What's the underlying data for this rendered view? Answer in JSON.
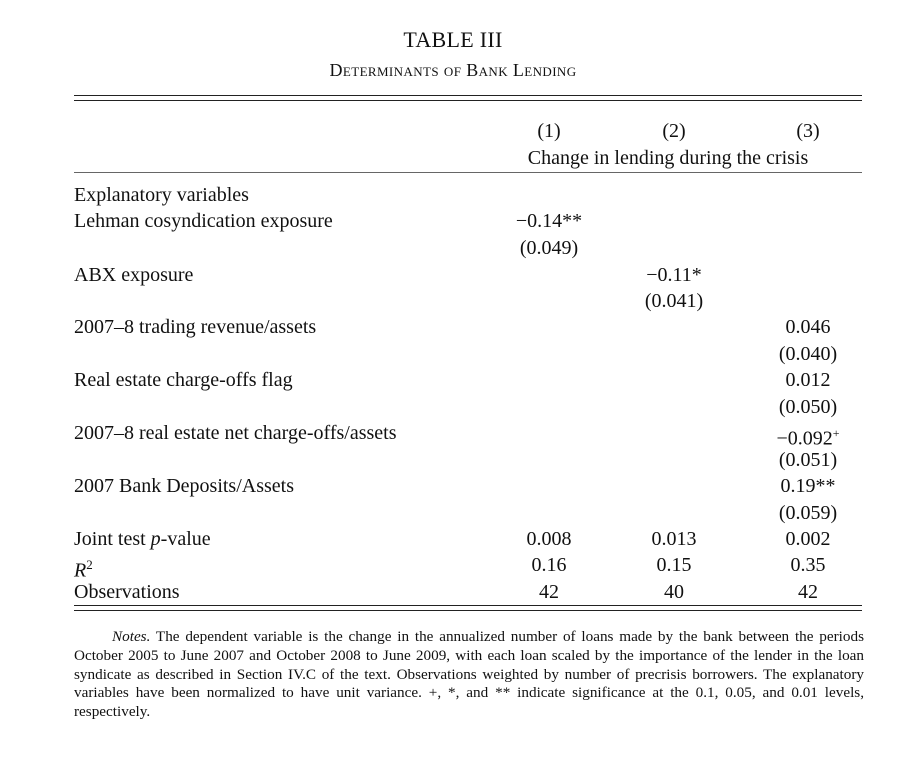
{
  "table": {
    "title": "TABLE III",
    "subtitle": "Determinants of Bank Lending",
    "columns": [
      "(1)",
      "(2)",
      "(3)"
    ],
    "column_group_label": "Change in lending during the crisis",
    "section_label": "Explanatory variables",
    "rows": [
      {
        "label": "Lehman cosyndication exposure",
        "c1": "−0.14**",
        "c1_se": "(0.049)"
      },
      {
        "label": "ABX exposure",
        "c2": "−0.11*",
        "c2_se": "(0.041)"
      },
      {
        "label": "2007–8 trading revenue/assets",
        "c3": "0.046",
        "c3_se": "(0.040)"
      },
      {
        "label": "Real estate charge-offs flag",
        "c3": "0.012",
        "c3_se": "(0.050)"
      },
      {
        "label": "2007–8 real estate net charge-offs/assets",
        "c3": "−0.092",
        "c3_sup": "+",
        "c3_se": "(0.051)"
      },
      {
        "label": "2007 Bank Deposits/Assets",
        "c3": "0.19**",
        "c3_se": "(0.059)"
      }
    ],
    "stats": {
      "joint_test": {
        "label_prefix": "Joint test ",
        "label_italic": "p",
        "label_suffix": "-value",
        "values": [
          "0.008",
          "0.013",
          "0.002"
        ]
      },
      "r2": {
        "label_italic": "R",
        "label_sup": "2",
        "values": [
          "0.16",
          "0.15",
          "0.35"
        ]
      },
      "observations": {
        "label": "Observations",
        "values": [
          "42",
          "40",
          "42"
        ]
      }
    }
  },
  "notes": {
    "label": "Notes.",
    "text": " The dependent variable is the change in the annualized number of loans made by the bank between the periods October 2005 to June 2007 and October 2008 to June 2009, with each loan scaled by the importance of the lender in the loan syndicate as described in Section IV.C of the text. Observations weighted by number of precrisis borrowers. The explanatory variables have been normalized to have unit variance. +, *, and ** indicate significance at the 0.1, 0.05, and 0.01 levels, respectively."
  }
}
